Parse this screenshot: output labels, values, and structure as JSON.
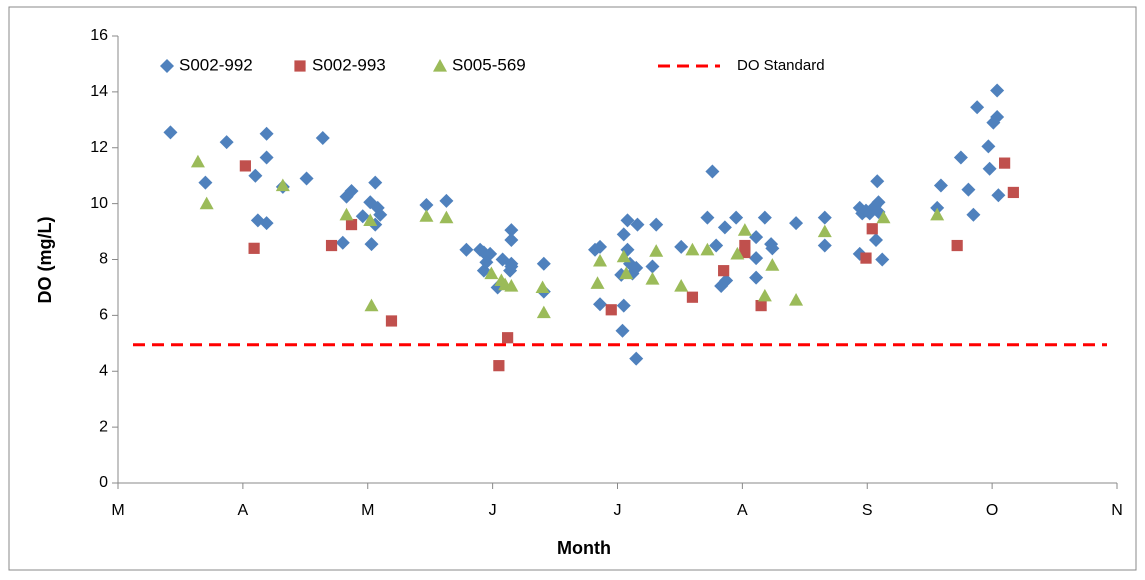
{
  "chart_data": {
    "type": "scatter",
    "x_label": "Month",
    "y_label": "DO (mg/L)",
    "xlim": [
      0,
      8
    ],
    "xticks": [
      {
        "value": 0,
        "label": "M"
      },
      {
        "value": 1,
        "label": "A"
      },
      {
        "value": 2,
        "label": "M"
      },
      {
        "value": 3,
        "label": "J"
      },
      {
        "value": 4,
        "label": "J"
      },
      {
        "value": 5,
        "label": "A"
      },
      {
        "value": 6,
        "label": "S"
      },
      {
        "value": 7,
        "label": "O"
      },
      {
        "value": 8,
        "label": "N"
      }
    ],
    "ylim": [
      0,
      16
    ],
    "yticks": [
      0,
      2,
      4,
      6,
      8,
      10,
      12,
      14,
      16
    ],
    "grid": false,
    "series": [
      {
        "name": "S002-992",
        "color": "#4f81bd",
        "marker": "diamond",
        "x": [
          0.42,
          0.7,
          0.87,
          1.1,
          1.12,
          1.19,
          1.19,
          1.19,
          1.32,
          1.51,
          1.64,
          1.8,
          1.83,
          1.87,
          1.96,
          2.02,
          2.03,
          2.06,
          2.08,
          2.1,
          2.06,
          2.47,
          2.63,
          2.79,
          2.9,
          2.93,
          2.98,
          2.93,
          2.95,
          3.04,
          3.08,
          3.15,
          3.15,
          3.15,
          3.15,
          3.14,
          3.41,
          3.41,
          3.82,
          3.86,
          3.86,
          4.04,
          4.05,
          4.03,
          4.05,
          4.08,
          4.08,
          4.1,
          4.12,
          4.15,
          4.16,
          4.15,
          4.28,
          4.31,
          4.51,
          4.72,
          4.76,
          4.79,
          4.83,
          4.87,
          4.86,
          4.95,
          5.11,
          5.11,
          5.11,
          5.18,
          5.23,
          5.24,
          5.43,
          5.66,
          5.66,
          5.94,
          5.96,
          5.99,
          6.02,
          6.06,
          6.08,
          6.09,
          6.07,
          6.09,
          6.12,
          5.94,
          6.56,
          6.59,
          6.75,
          6.81,
          6.85,
          6.88,
          6.97,
          6.98,
          7.04,
          7.04,
          7.01,
          7.05
        ],
        "values": [
          12.55,
          10.75,
          12.2,
          11.0,
          9.4,
          9.3,
          12.5,
          11.65,
          10.6,
          10.9,
          12.35,
          8.6,
          10.25,
          10.45,
          9.55,
          10.05,
          8.55,
          10.75,
          9.85,
          9.6,
          9.25,
          9.95,
          10.1,
          8.35,
          8.35,
          8.25,
          8.2,
          7.6,
          7.9,
          7.0,
          8.0,
          7.85,
          9.05,
          8.7,
          7.75,
          7.6,
          6.85,
          7.85,
          8.35,
          8.45,
          6.4,
          5.45,
          6.35,
          7.45,
          8.9,
          9.4,
          8.35,
          7.85,
          7.5,
          7.7,
          9.25,
          4.45,
          7.75,
          9.25,
          8.45,
          9.5,
          11.15,
          8.5,
          7.05,
          7.25,
          9.15,
          9.5,
          8.8,
          8.05,
          7.35,
          9.5,
          8.55,
          8.4,
          9.3,
          9.5,
          8.5,
          9.85,
          9.65,
          9.75,
          9.65,
          9.9,
          10.8,
          10.05,
          8.7,
          9.7,
          8.0,
          8.2,
          9.85,
          10.65,
          11.65,
          10.5,
          9.6,
          13.45,
          12.05,
          11.25,
          14.05,
          13.1,
          12.9,
          10.3
        ]
      },
      {
        "name": "S002-993",
        "color": "#c0504d",
        "marker": "square",
        "x": [
          1.02,
          1.09,
          1.71,
          1.87,
          2.19,
          3.05,
          3.12,
          3.95,
          4.6,
          4.85,
          5.02,
          5.02,
          5.15,
          5.99,
          6.04,
          6.72,
          7.1,
          7.17
        ],
        "values": [
          11.35,
          8.4,
          8.5,
          9.25,
          5.8,
          4.2,
          5.2,
          6.2,
          6.65,
          7.6,
          8.5,
          8.25,
          6.35,
          8.05,
          9.1,
          8.5,
          11.45,
          10.4
        ]
      },
      {
        "name": "S005-569",
        "color": "#9bbb59",
        "marker": "triangle",
        "x": [
          0.64,
          0.71,
          1.32,
          1.83,
          2.02,
          2.03,
          2.47,
          2.63,
          2.99,
          3.07,
          3.1,
          3.15,
          3.4,
          3.41,
          3.84,
          3.86,
          4.05,
          4.07,
          4.28,
          4.31,
          4.51,
          4.6,
          4.72,
          4.96,
          5.02,
          5.18,
          5.24,
          5.43,
          5.66,
          6.13,
          6.56
        ],
        "values": [
          11.5,
          10.0,
          10.65,
          9.6,
          9.4,
          6.35,
          9.55,
          9.5,
          7.5,
          7.25,
          7.1,
          7.05,
          7.0,
          6.1,
          7.15,
          7.95,
          8.1,
          7.5,
          7.3,
          8.3,
          7.05,
          8.35,
          8.35,
          8.2,
          9.05,
          6.7,
          7.8,
          6.55,
          9.0,
          9.5,
          9.6
        ]
      }
    ],
    "reference_line": {
      "name": "DO Standard",
      "color": "#ff0000",
      "value": 4.95
    }
  }
}
